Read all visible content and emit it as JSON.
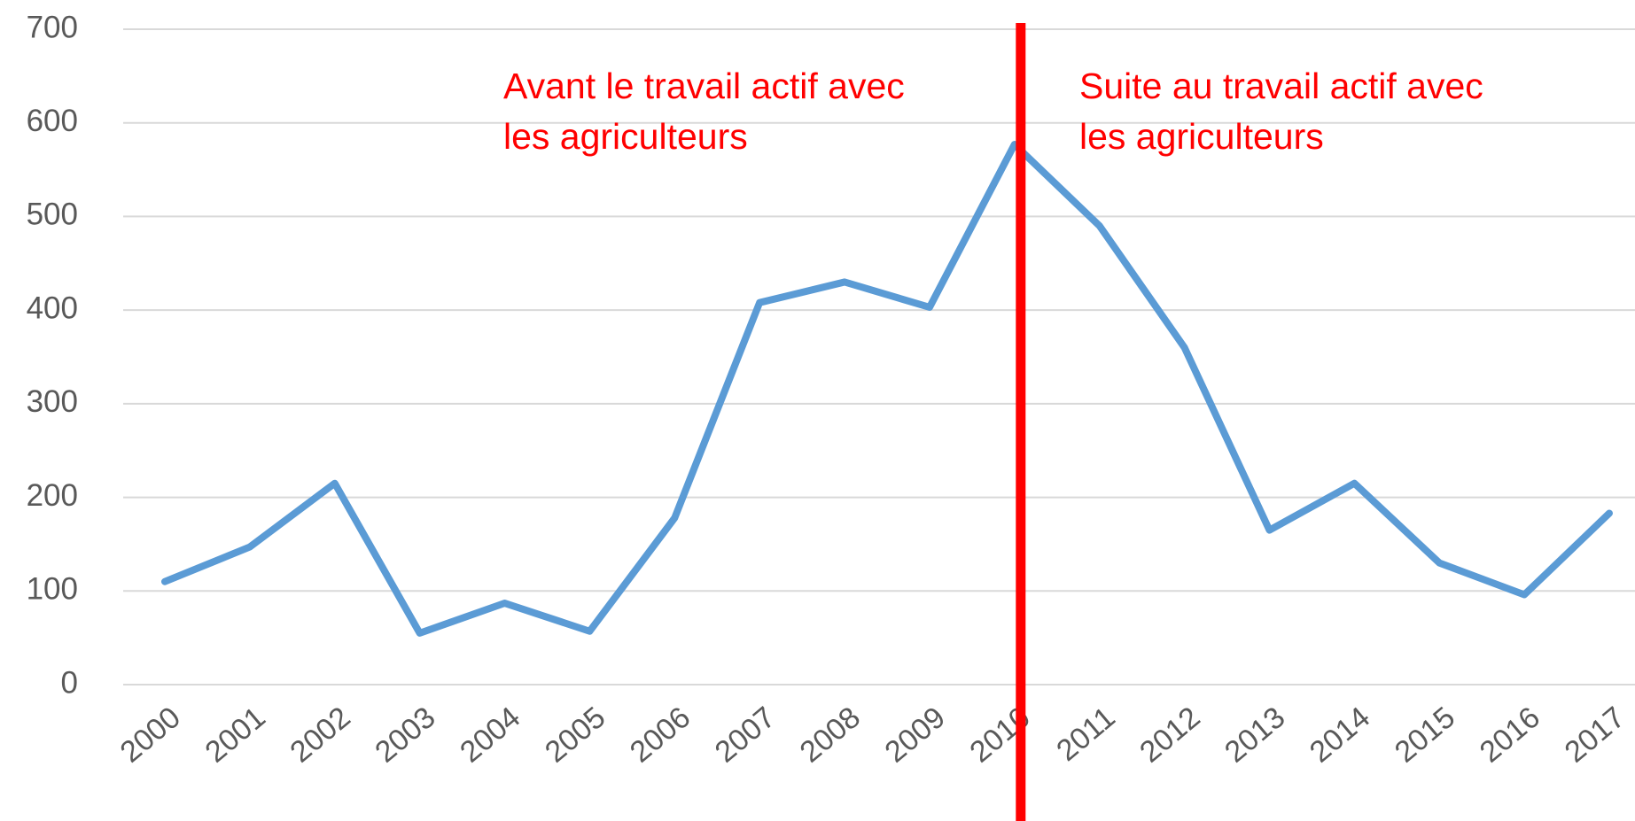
{
  "chart_data": {
    "type": "line",
    "categories": [
      "2000",
      "2001",
      "2002",
      "2003",
      "2004",
      "2005",
      "2006",
      "2007",
      "2008",
      "2009",
      "2010",
      "2011",
      "2012",
      "2013",
      "2014",
      "2015",
      "2016",
      "2017"
    ],
    "series": [
      {
        "name": null,
        "color": "#5b9bd5",
        "values": [
          110,
          147,
          215,
          55,
          87,
          57,
          178,
          408,
          430,
          403,
          577,
          490,
          360,
          165,
          215,
          130,
          96,
          183
        ]
      }
    ],
    "ylim": [
      0,
      700
    ],
    "yticks": [
      0,
      100,
      200,
      300,
      400,
      500,
      600,
      700
    ],
    "grid": true,
    "vline": {
      "category": "2010",
      "color": "#ff0000"
    },
    "annotations": [
      {
        "lines": [
          "Avant le travail actif avec",
          "les agriculteurs"
        ],
        "color": "#ff0000"
      },
      {
        "lines": [
          "Suite au travail actif avec",
          "les agriculteurs"
        ],
        "color": "#ff0000"
      }
    ]
  }
}
